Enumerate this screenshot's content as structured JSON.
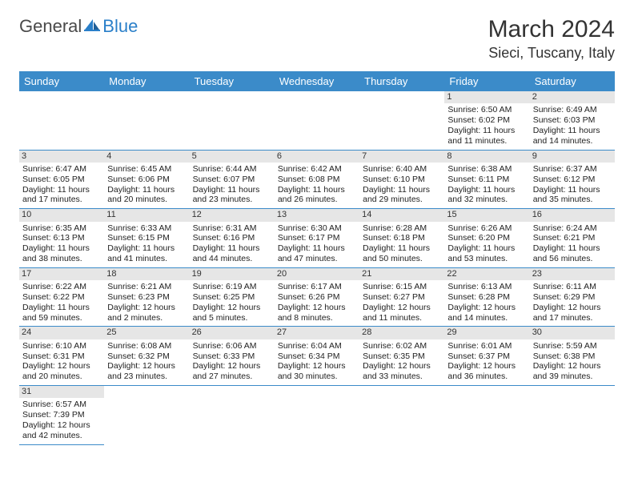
{
  "logo": {
    "part1": "General",
    "part2": "Blue"
  },
  "title": "March 2024",
  "location": "Sieci, Tuscany, Italy",
  "colors": {
    "header_bg": "#3b8bc9",
    "header_text": "#ffffff",
    "daynum_bg": "#e6e6e6",
    "rule": "#3b8bc9",
    "logo_blue": "#2a7fc9"
  },
  "day_headers": [
    "Sunday",
    "Monday",
    "Tuesday",
    "Wednesday",
    "Thursday",
    "Friday",
    "Saturday"
  ],
  "weeks": [
    [
      null,
      null,
      null,
      null,
      null,
      {
        "n": "1",
        "sr": "Sunrise: 6:50 AM",
        "ss": "Sunset: 6:02 PM",
        "dl": "Daylight: 11 hours and 11 minutes."
      },
      {
        "n": "2",
        "sr": "Sunrise: 6:49 AM",
        "ss": "Sunset: 6:03 PM",
        "dl": "Daylight: 11 hours and 14 minutes."
      }
    ],
    [
      {
        "n": "3",
        "sr": "Sunrise: 6:47 AM",
        "ss": "Sunset: 6:05 PM",
        "dl": "Daylight: 11 hours and 17 minutes."
      },
      {
        "n": "4",
        "sr": "Sunrise: 6:45 AM",
        "ss": "Sunset: 6:06 PM",
        "dl": "Daylight: 11 hours and 20 minutes."
      },
      {
        "n": "5",
        "sr": "Sunrise: 6:44 AM",
        "ss": "Sunset: 6:07 PM",
        "dl": "Daylight: 11 hours and 23 minutes."
      },
      {
        "n": "6",
        "sr": "Sunrise: 6:42 AM",
        "ss": "Sunset: 6:08 PM",
        "dl": "Daylight: 11 hours and 26 minutes."
      },
      {
        "n": "7",
        "sr": "Sunrise: 6:40 AM",
        "ss": "Sunset: 6:10 PM",
        "dl": "Daylight: 11 hours and 29 minutes."
      },
      {
        "n": "8",
        "sr": "Sunrise: 6:38 AM",
        "ss": "Sunset: 6:11 PM",
        "dl": "Daylight: 11 hours and 32 minutes."
      },
      {
        "n": "9",
        "sr": "Sunrise: 6:37 AM",
        "ss": "Sunset: 6:12 PM",
        "dl": "Daylight: 11 hours and 35 minutes."
      }
    ],
    [
      {
        "n": "10",
        "sr": "Sunrise: 6:35 AM",
        "ss": "Sunset: 6:13 PM",
        "dl": "Daylight: 11 hours and 38 minutes."
      },
      {
        "n": "11",
        "sr": "Sunrise: 6:33 AM",
        "ss": "Sunset: 6:15 PM",
        "dl": "Daylight: 11 hours and 41 minutes."
      },
      {
        "n": "12",
        "sr": "Sunrise: 6:31 AM",
        "ss": "Sunset: 6:16 PM",
        "dl": "Daylight: 11 hours and 44 minutes."
      },
      {
        "n": "13",
        "sr": "Sunrise: 6:30 AM",
        "ss": "Sunset: 6:17 PM",
        "dl": "Daylight: 11 hours and 47 minutes."
      },
      {
        "n": "14",
        "sr": "Sunrise: 6:28 AM",
        "ss": "Sunset: 6:18 PM",
        "dl": "Daylight: 11 hours and 50 minutes."
      },
      {
        "n": "15",
        "sr": "Sunrise: 6:26 AM",
        "ss": "Sunset: 6:20 PM",
        "dl": "Daylight: 11 hours and 53 minutes."
      },
      {
        "n": "16",
        "sr": "Sunrise: 6:24 AM",
        "ss": "Sunset: 6:21 PM",
        "dl": "Daylight: 11 hours and 56 minutes."
      }
    ],
    [
      {
        "n": "17",
        "sr": "Sunrise: 6:22 AM",
        "ss": "Sunset: 6:22 PM",
        "dl": "Daylight: 11 hours and 59 minutes."
      },
      {
        "n": "18",
        "sr": "Sunrise: 6:21 AM",
        "ss": "Sunset: 6:23 PM",
        "dl": "Daylight: 12 hours and 2 minutes."
      },
      {
        "n": "19",
        "sr": "Sunrise: 6:19 AM",
        "ss": "Sunset: 6:25 PM",
        "dl": "Daylight: 12 hours and 5 minutes."
      },
      {
        "n": "20",
        "sr": "Sunrise: 6:17 AM",
        "ss": "Sunset: 6:26 PM",
        "dl": "Daylight: 12 hours and 8 minutes."
      },
      {
        "n": "21",
        "sr": "Sunrise: 6:15 AM",
        "ss": "Sunset: 6:27 PM",
        "dl": "Daylight: 12 hours and 11 minutes."
      },
      {
        "n": "22",
        "sr": "Sunrise: 6:13 AM",
        "ss": "Sunset: 6:28 PM",
        "dl": "Daylight: 12 hours and 14 minutes."
      },
      {
        "n": "23",
        "sr": "Sunrise: 6:11 AM",
        "ss": "Sunset: 6:29 PM",
        "dl": "Daylight: 12 hours and 17 minutes."
      }
    ],
    [
      {
        "n": "24",
        "sr": "Sunrise: 6:10 AM",
        "ss": "Sunset: 6:31 PM",
        "dl": "Daylight: 12 hours and 20 minutes."
      },
      {
        "n": "25",
        "sr": "Sunrise: 6:08 AM",
        "ss": "Sunset: 6:32 PM",
        "dl": "Daylight: 12 hours and 23 minutes."
      },
      {
        "n": "26",
        "sr": "Sunrise: 6:06 AM",
        "ss": "Sunset: 6:33 PM",
        "dl": "Daylight: 12 hours and 27 minutes."
      },
      {
        "n": "27",
        "sr": "Sunrise: 6:04 AM",
        "ss": "Sunset: 6:34 PM",
        "dl": "Daylight: 12 hours and 30 minutes."
      },
      {
        "n": "28",
        "sr": "Sunrise: 6:02 AM",
        "ss": "Sunset: 6:35 PM",
        "dl": "Daylight: 12 hours and 33 minutes."
      },
      {
        "n": "29",
        "sr": "Sunrise: 6:01 AM",
        "ss": "Sunset: 6:37 PM",
        "dl": "Daylight: 12 hours and 36 minutes."
      },
      {
        "n": "30",
        "sr": "Sunrise: 5:59 AM",
        "ss": "Sunset: 6:38 PM",
        "dl": "Daylight: 12 hours and 39 minutes."
      }
    ],
    [
      {
        "n": "31",
        "sr": "Sunrise: 6:57 AM",
        "ss": "Sunset: 7:39 PM",
        "dl": "Daylight: 12 hours and 42 minutes."
      },
      null,
      null,
      null,
      null,
      null,
      null
    ]
  ]
}
